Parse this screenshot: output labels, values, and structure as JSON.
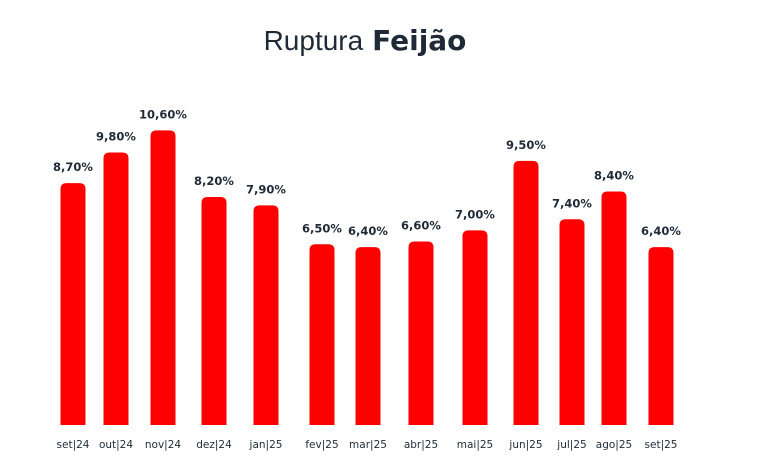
{
  "chart_data": {
    "type": "bar",
    "title_light": "Ruptura",
    "title_bold": "Feijão",
    "xlabel": "",
    "ylabel": "",
    "categories": [
      "set|24",
      "out|24",
      "nov|24",
      "dez|24",
      "jan|25",
      "fev|25",
      "mar|25",
      "abr|25",
      "mai|25",
      "jun|25",
      "jul|25",
      "ago|25",
      "set|25"
    ],
    "values": [
      8.7,
      9.8,
      10.6,
      8.2,
      7.9,
      6.5,
      6.4,
      6.6,
      7.0,
      9.5,
      7.4,
      8.4,
      6.4
    ],
    "labels": [
      "8,70%",
      "9,80%",
      "10,60%",
      "8,20%",
      "7,90%",
      "6,50%",
      "6,40%",
      "6,60%",
      "7,00%",
      "9,50%",
      "7,40%",
      "8,40%",
      "6,40%"
    ],
    "ylim": [
      0,
      11
    ],
    "grid": false,
    "bar_color": "#ff0000"
  }
}
